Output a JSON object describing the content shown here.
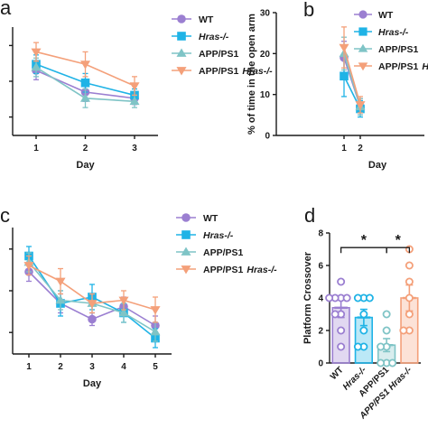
{
  "colors": {
    "WT": "#9b7fd1",
    "Hras": "#1fb3e6",
    "APPPS1": "#7fc4c6",
    "APPPS1_Hras": "#f4a07a"
  },
  "chart_data": [
    {
      "panel": "a",
      "type": "line",
      "xlabel": "Day",
      "ylabel": "",
      "x": [
        1,
        2,
        3
      ],
      "series": [
        {
          "name": "WT",
          "marker": "circle",
          "values": [
            31,
            24,
            22
          ],
          "err": [
            3,
            3,
            2
          ]
        },
        {
          "name": "Hras-/-",
          "marker": "square",
          "values": [
            33,
            27,
            23
          ],
          "err": [
            3,
            3,
            2
          ]
        },
        {
          "name": "APP/PS1",
          "marker": "triangle-up",
          "values": [
            32,
            22,
            21
          ],
          "err": [
            3,
            3,
            2
          ]
        },
        {
          "name": "APP/PS1 Hras-/-",
          "marker": "triangle-down",
          "values": [
            37,
            33,
            26
          ],
          "err": [
            3,
            4,
            3
          ]
        }
      ]
    },
    {
      "panel": "b",
      "type": "line",
      "xlabel": "Day",
      "ylabel": "% of time in the open arm",
      "yticks": [
        0,
        10,
        20,
        30
      ],
      "ylim": [
        0,
        30
      ],
      "x": [
        1,
        2
      ],
      "series": [
        {
          "name": "WT",
          "marker": "circle",
          "values": [
            19,
            7
          ],
          "err": [
            4,
            2
          ]
        },
        {
          "name": "Hras-/-",
          "marker": "square",
          "values": [
            14.5,
            6.5
          ],
          "err": [
            5,
            2
          ]
        },
        {
          "name": "APP/PS1",
          "marker": "triangle-up",
          "values": [
            20,
            7
          ],
          "err": [
            4,
            2
          ]
        },
        {
          "name": "APP/PS1 Hras-/-",
          "marker": "triangle-down",
          "values": [
            21.5,
            7.5
          ],
          "err": [
            5,
            2
          ]
        }
      ]
    },
    {
      "panel": "c",
      "type": "line",
      "xlabel": "Day",
      "ylabel": "",
      "x": [
        1,
        2,
        3,
        4,
        5
      ],
      "series": [
        {
          "name": "WT",
          "marker": "circle",
          "values": [
            41,
            31,
            26,
            30,
            24
          ],
          "err": [
            3,
            3,
            2,
            3,
            3
          ]
        },
        {
          "name": "Hras-/-",
          "marker": "square",
          "values": [
            46,
            31,
            33,
            28,
            20
          ],
          "err": [
            3,
            4,
            4,
            3,
            3
          ]
        },
        {
          "name": "APP/PS1",
          "marker": "triangle-up",
          "values": [
            44,
            32,
            31,
            28,
            22
          ],
          "err": [
            3,
            3,
            3,
            3,
            3
          ]
        },
        {
          "name": "APP/PS1 Hras-/-",
          "marker": "triangle-down",
          "values": [
            43,
            38,
            31,
            32,
            29
          ],
          "err": [
            3,
            4,
            3,
            3,
            4
          ]
        }
      ]
    },
    {
      "panel": "d",
      "type": "bar",
      "xlabel": "",
      "ylabel": "Platform Crossover",
      "yticks": [
        0,
        2,
        4,
        6,
        8
      ],
      "ylim": [
        0,
        8
      ],
      "categories": [
        "WT",
        "Hras-/-",
        "APP/PS1",
        "APP/PS1 Hras-/-"
      ],
      "values": [
        3.4,
        2.8,
        1.1,
        4.0
      ],
      "err": [
        0.6,
        0.5,
        0.4,
        0.8
      ],
      "points": [
        [
          1,
          2,
          3,
          3,
          4,
          4,
          4,
          4,
          5
        ],
        [
          1,
          1,
          2,
          3,
          4,
          4,
          4
        ],
        [
          0,
          0,
          0,
          1,
          1,
          2,
          3
        ],
        [
          2,
          2,
          3,
          4,
          5,
          6,
          7
        ]
      ],
      "significance": [
        {
          "from": "WT",
          "to": "APP/PS1",
          "label": "*"
        },
        {
          "from": "APP/PS1",
          "to": "APP/PS1 Hras-/-",
          "label": "*"
        }
      ]
    }
  ],
  "legend": {
    "items": [
      {
        "label": "WT",
        "marker": "circle",
        "color_key": "WT",
        "italic": false
      },
      {
        "label": "Hras-/-",
        "marker": "square",
        "color_key": "Hras",
        "italic": true
      },
      {
        "label": "APP/PS1",
        "marker": "triangle-up",
        "color_key": "APPPS1",
        "italic": false
      },
      {
        "label": "APP/PS1",
        "label_suffix": "Hras-/-",
        "marker": "triangle-down",
        "color_key": "APPPS1_Hras",
        "italic": false
      }
    ]
  }
}
